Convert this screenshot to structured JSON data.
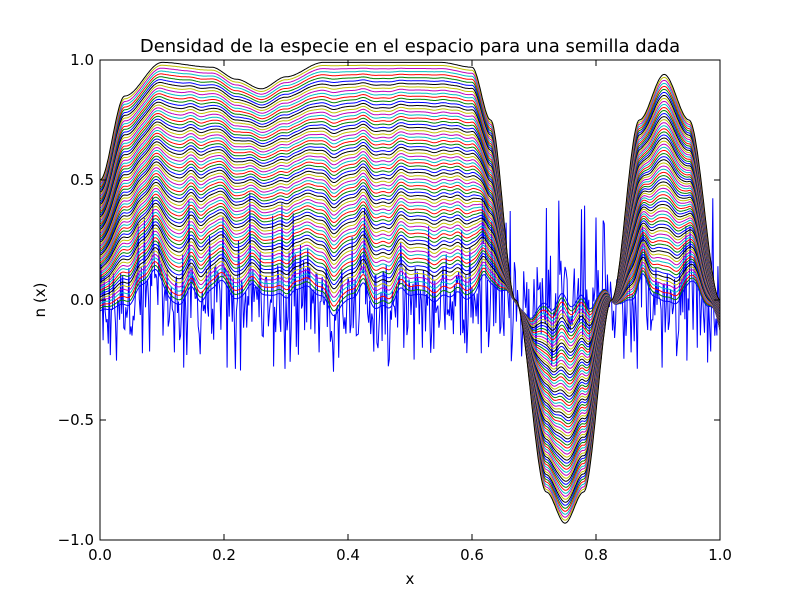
{
  "chart_data": {
    "type": "line",
    "title": "Densidad de la especie en el espacio para una semilla dada",
    "xlabel": "x",
    "ylabel": "n (x)",
    "xlim": [
      0.0,
      1.0
    ],
    "ylim": [
      -1.0,
      1.0
    ],
    "xticks": [
      "0.0",
      "0.2",
      "0.4",
      "0.6",
      "0.8",
      "1.0"
    ],
    "yticks": [
      "−1.0",
      "−0.5",
      "0.0",
      "0.5",
      "1.0"
    ],
    "grid": false,
    "legend": "none",
    "color_cycle": [
      "#0000ff",
      "#008000",
      "#ff0000",
      "#00bfbf",
      "#bf00bf",
      "#bfbf00",
      "#000000"
    ],
    "series_description": {
      "initial_noise": {
        "color": "#0000ff",
        "range": [
          -0.3,
          0.45
        ]
      },
      "family_count": 70,
      "final_profile_points": [
        {
          "x": 0.0,
          "y": 0.5
        },
        {
          "x": 0.04,
          "y": 0.85
        },
        {
          "x": 0.1,
          "y": 0.99
        },
        {
          "x": 0.18,
          "y": 0.97
        },
        {
          "x": 0.22,
          "y": 0.92
        },
        {
          "x": 0.26,
          "y": 0.88
        },
        {
          "x": 0.3,
          "y": 0.93
        },
        {
          "x": 0.36,
          "y": 0.99
        },
        {
          "x": 0.45,
          "y": 0.99
        },
        {
          "x": 0.55,
          "y": 0.99
        },
        {
          "x": 0.6,
          "y": 0.97
        },
        {
          "x": 0.63,
          "y": 0.75
        },
        {
          "x": 0.67,
          "y": 0.0
        },
        {
          "x": 0.72,
          "y": -0.8
        },
        {
          "x": 0.75,
          "y": -0.93
        },
        {
          "x": 0.78,
          "y": -0.8
        },
        {
          "x": 0.825,
          "y": 0.0
        },
        {
          "x": 0.87,
          "y": 0.75
        },
        {
          "x": 0.91,
          "y": 0.94
        },
        {
          "x": 0.95,
          "y": 0.75
        },
        {
          "x": 1.0,
          "y": 0.0
        }
      ]
    }
  }
}
